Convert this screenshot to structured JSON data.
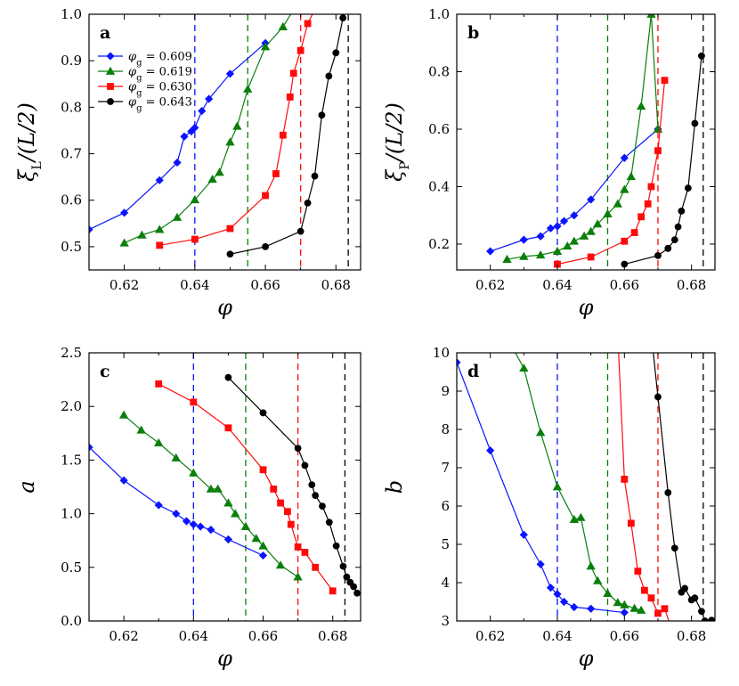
{
  "colors": {
    "0.609": "#0a14ff",
    "0.619": "#0a7f0a",
    "0.630": "#ff0a0a",
    "0.643": "#000000"
  },
  "legend": {
    "entries": [
      {
        "key": "0.609",
        "prefix": "φ",
        "sub": "g",
        "text": " = 0.609",
        "marker": "diamond"
      },
      {
        "key": "0.619",
        "prefix": "φ",
        "sub": "g",
        "text": " = 0.619",
        "marker": "triangle"
      },
      {
        "key": "0.630",
        "prefix": "φ",
        "sub": "g",
        "text": " = 0.630",
        "marker": "square"
      },
      {
        "key": "0.643",
        "prefix": "φ",
        "sub": "g",
        "text": " = 0.643",
        "marker": "circle"
      }
    ]
  },
  "chart_data": [
    {
      "id": "a",
      "label": "a",
      "type": "line",
      "xlabel": "φ",
      "ylabel": {
        "main": "ξ",
        "sub": "L",
        "rest": "/(L/2)"
      },
      "xlim": [
        0.61,
        0.687
      ],
      "ylim": [
        0.45,
        1.0
      ],
      "xticks": [
        "0.62",
        "0.64",
        "0.66",
        "0.68"
      ],
      "yticks": [
        "0.5",
        "0.6",
        "0.7",
        "0.8",
        "0.9",
        "1.0"
      ],
      "vlines": [
        {
          "x": 0.64,
          "key": "0.609"
        },
        {
          "x": 0.655,
          "key": "0.619"
        },
        {
          "x": 0.67,
          "key": "0.630"
        },
        {
          "x": 0.6835,
          "key": "0.643"
        }
      ],
      "series": [
        {
          "key": "0.609",
          "marker": "diamond",
          "x": [
            0.61,
            0.62,
            0.63,
            0.635,
            0.637,
            0.639,
            0.64,
            0.642,
            0.644,
            0.65,
            0.66
          ],
          "y": [
            0.537,
            0.573,
            0.643,
            0.681,
            0.737,
            0.748,
            0.756,
            0.792,
            0.818,
            0.872,
            0.938
          ]
        },
        {
          "key": "0.619",
          "marker": "triangle",
          "x": [
            0.62,
            0.625,
            0.63,
            0.635,
            0.64,
            0.645,
            0.647,
            0.65,
            0.652,
            0.655,
            0.66,
            0.665,
            0.668
          ],
          "y": [
            0.508,
            0.525,
            0.537,
            0.563,
            0.601,
            0.645,
            0.66,
            0.725,
            0.759,
            0.839,
            0.93,
            0.973,
            1.01
          ]
        },
        {
          "key": "0.630",
          "marker": "square",
          "x": [
            0.63,
            0.64,
            0.65,
            0.66,
            0.663,
            0.665,
            0.667,
            0.668,
            0.67,
            0.672,
            0.674
          ],
          "y": [
            0.503,
            0.516,
            0.539,
            0.61,
            0.657,
            0.74,
            0.822,
            0.873,
            0.922,
            0.98,
            1.01
          ]
        },
        {
          "key": "0.643",
          "marker": "circle",
          "x": [
            0.65,
            0.66,
            0.67,
            0.672,
            0.674,
            0.676,
            0.678,
            0.68,
            0.682
          ],
          "y": [
            0.484,
            0.5,
            0.533,
            0.594,
            0.652,
            0.783,
            0.867,
            0.917,
            0.992
          ]
        }
      ]
    },
    {
      "id": "b",
      "label": "b",
      "type": "line",
      "xlabel": "φ",
      "ylabel": {
        "main": "ξ",
        "sub": "P",
        "rest": "/(L/2)"
      },
      "xlim": [
        0.61,
        0.687
      ],
      "ylim": [
        0.11,
        1.0
      ],
      "xticks": [
        "0.62",
        "0.64",
        "0.66",
        "0.68"
      ],
      "yticks": [
        "0.2",
        "0.4",
        "0.6",
        "0.8",
        "1.0"
      ],
      "vlines": [
        {
          "x": 0.64,
          "key": "0.609"
        },
        {
          "x": 0.655,
          "key": "0.619"
        },
        {
          "x": 0.67,
          "key": "0.630"
        },
        {
          "x": 0.6835,
          "key": "0.643"
        }
      ],
      "series": [
        {
          "key": "0.609",
          "marker": "diamond",
          "x": [
            0.62,
            0.63,
            0.635,
            0.638,
            0.64,
            0.642,
            0.645,
            0.65,
            0.66,
            0.67
          ],
          "y": [
            0.175,
            0.215,
            0.227,
            0.255,
            0.262,
            0.28,
            0.3,
            0.355,
            0.5,
            0.6
          ]
        },
        {
          "key": "0.619",
          "marker": "triangle",
          "x": [
            0.625,
            0.63,
            0.635,
            0.64,
            0.643,
            0.645,
            0.648,
            0.65,
            0.652,
            0.655,
            0.658,
            0.66,
            0.662,
            0.665,
            0.668,
            0.67
          ],
          "y": [
            0.147,
            0.157,
            0.162,
            0.175,
            0.193,
            0.21,
            0.228,
            0.244,
            0.27,
            0.305,
            0.34,
            0.39,
            0.435,
            0.68,
            1.0,
            0.6
          ]
        },
        {
          "key": "0.630",
          "marker": "square",
          "x": [
            0.64,
            0.65,
            0.66,
            0.663,
            0.665,
            0.667,
            0.668,
            0.67,
            0.672
          ],
          "y": [
            0.13,
            0.155,
            0.21,
            0.24,
            0.295,
            0.34,
            0.4,
            0.525,
            0.77
          ]
        },
        {
          "key": "0.643",
          "marker": "circle",
          "x": [
            0.66,
            0.67,
            0.673,
            0.675,
            0.676,
            0.677,
            0.679,
            0.681,
            0.683
          ],
          "y": [
            0.13,
            0.16,
            0.185,
            0.215,
            0.26,
            0.315,
            0.395,
            0.62,
            0.855
          ]
        }
      ]
    },
    {
      "id": "c",
      "label": "c",
      "type": "line",
      "xlabel": "φ",
      "ylabel": {
        "main": "a",
        "sub": "",
        "rest": ""
      },
      "xlim": [
        0.61,
        0.688
      ],
      "ylim": [
        0.0,
        2.5
      ],
      "xticks": [
        "0.62",
        "0.64",
        "0.66",
        "0.68"
      ],
      "yticks": [
        "0.0",
        "0.5",
        "1.0",
        "1.5",
        "2.0",
        "2.5"
      ],
      "vlines": [
        {
          "x": 0.64,
          "key": "0.609"
        },
        {
          "x": 0.655,
          "key": "0.619"
        },
        {
          "x": 0.67,
          "key": "0.630"
        },
        {
          "x": 0.6835,
          "key": "0.643"
        }
      ],
      "series": [
        {
          "key": "0.609",
          "marker": "diamond",
          "x": [
            0.61,
            0.62,
            0.63,
            0.635,
            0.638,
            0.64,
            0.642,
            0.645,
            0.65,
            0.66
          ],
          "y": [
            1.62,
            1.31,
            1.08,
            1.0,
            0.93,
            0.9,
            0.88,
            0.85,
            0.76,
            0.61
          ]
        },
        {
          "key": "0.619",
          "marker": "triangle",
          "x": [
            0.62,
            0.625,
            0.63,
            0.635,
            0.64,
            0.645,
            0.647,
            0.65,
            0.652,
            0.655,
            0.658,
            0.66,
            0.665,
            0.67
          ],
          "y": [
            1.92,
            1.78,
            1.66,
            1.52,
            1.38,
            1.23,
            1.23,
            1.1,
            1.0,
            0.88,
            0.77,
            0.7,
            0.52,
            0.41
          ]
        },
        {
          "key": "0.630",
          "marker": "square",
          "x": [
            0.63,
            0.64,
            0.65,
            0.66,
            0.663,
            0.665,
            0.667,
            0.668,
            0.67,
            0.672,
            0.675,
            0.68
          ],
          "y": [
            2.21,
            2.04,
            1.8,
            1.41,
            1.23,
            1.1,
            1.02,
            0.9,
            0.69,
            0.64,
            0.5,
            0.28
          ]
        },
        {
          "key": "0.643",
          "marker": "circle",
          "x": [
            0.65,
            0.66,
            0.67,
            0.672,
            0.674,
            0.675,
            0.677,
            0.679,
            0.681,
            0.683,
            0.684,
            0.685,
            0.686,
            0.687
          ],
          "y": [
            2.27,
            1.94,
            1.61,
            1.45,
            1.27,
            1.17,
            1.07,
            0.92,
            0.7,
            0.51,
            0.41,
            0.36,
            0.32,
            0.26
          ]
        }
      ]
    },
    {
      "id": "d",
      "label": "d",
      "type": "line",
      "xlabel": "φ",
      "ylabel": {
        "main": "b",
        "sub": "",
        "rest": ""
      },
      "xlim": [
        0.61,
        0.687
      ],
      "ylim": [
        3.0,
        10.0
      ],
      "xticks": [
        "0.62",
        "0.64",
        "0.66",
        "0.68"
      ],
      "yticks": [
        "3",
        "4",
        "5",
        "6",
        "7",
        "8",
        "9",
        "10"
      ],
      "vlines": [
        {
          "x": 0.64,
          "key": "0.609"
        },
        {
          "x": 0.655,
          "key": "0.619"
        },
        {
          "x": 0.67,
          "key": "0.630"
        },
        {
          "x": 0.6835,
          "key": "0.643"
        }
      ],
      "series": [
        {
          "key": "0.609",
          "marker": "diamond",
          "x": [
            0.61,
            0.62,
            0.63,
            0.635,
            0.638,
            0.64,
            0.642,
            0.645,
            0.65,
            0.66
          ],
          "y": [
            9.75,
            7.45,
            5.25,
            4.48,
            3.87,
            3.7,
            3.5,
            3.36,
            3.32,
            3.22
          ]
        },
        {
          "key": "0.619",
          "marker": "triangle",
          "x": [
            0.625,
            0.63,
            0.635,
            0.64,
            0.645,
            0.647,
            0.65,
            0.652,
            0.655,
            0.658,
            0.66,
            0.663,
            0.665
          ],
          "y": [
            10.4,
            9.6,
            7.92,
            6.5,
            5.65,
            5.7,
            4.43,
            4.05,
            3.72,
            3.48,
            3.42,
            3.33,
            3.28
          ]
        },
        {
          "key": "0.630",
          "marker": "square",
          "x": [
            0.658,
            0.66,
            0.662,
            0.664,
            0.666,
            0.668,
            0.67,
            0.672,
            0.674
          ],
          "y": [
            10.5,
            6.7,
            5.55,
            4.3,
            3.8,
            3.6,
            3.2,
            3.32,
            2.8
          ]
        },
        {
          "key": "0.643",
          "marker": "circle",
          "x": [
            0.668,
            0.67,
            0.673,
            0.675,
            0.677,
            0.678,
            0.68,
            0.681,
            0.683,
            0.684,
            0.686
          ],
          "y": [
            10.5,
            8.85,
            6.35,
            4.9,
            3.75,
            3.85,
            3.55,
            3.6,
            3.25,
            3.0,
            3.02
          ]
        }
      ]
    }
  ]
}
